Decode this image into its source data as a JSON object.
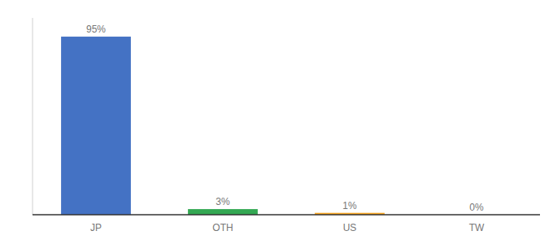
{
  "chart_data": {
    "type": "bar",
    "categories": [
      "JP",
      "OTH",
      "US",
      "TW"
    ],
    "values": [
      95,
      3,
      1,
      0
    ],
    "value_labels": [
      "95%",
      "3%",
      "1%",
      "0%"
    ],
    "colors": [
      "#4472c4",
      "#33a853",
      "#f9a825",
      "#f9a825"
    ],
    "ylim": [
      0,
      105
    ],
    "grid": false,
    "data_labels": true,
    "tick_labels": "x"
  }
}
